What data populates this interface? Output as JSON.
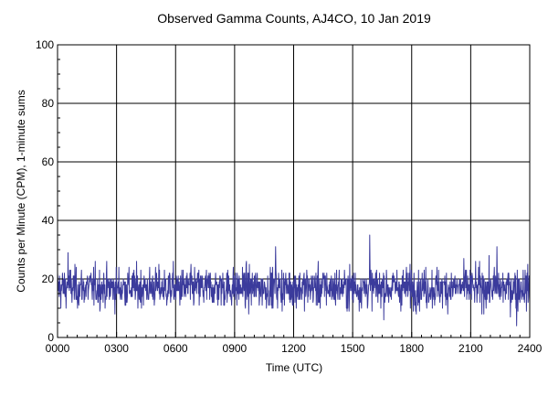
{
  "chart_data": {
    "type": "line",
    "title": "Observed Gamma Counts, AJ4CO, 10 Jan 2019",
    "xlabel": "Time (UTC)",
    "ylabel": "Counts per Minute (CPM), 1-minute sums",
    "x_ticks": [
      "0000",
      "0300",
      "0600",
      "0900",
      "1200",
      "1500",
      "1800",
      "2100",
      "2400"
    ],
    "y_ticks": [
      0,
      20,
      40,
      60,
      80,
      100
    ],
    "xlim": [
      0,
      1440
    ],
    "ylim": [
      0,
      100
    ],
    "x_unit": "minutes after 0000 UTC",
    "grid": true,
    "series_color": "#3b3b9c",
    "series": [
      {
        "description": "1-minute gamma count sums; values fluctuate roughly between 7 and 35 CPM around a mean near 17 CPM",
        "mean": 17,
        "spread": 4,
        "min": 3,
        "max": 35,
        "spikes": [
          {
            "x": 32,
            "y": 29
          },
          {
            "x": 665,
            "y": 31
          },
          {
            "x": 952,
            "y": 35
          },
          {
            "x": 1340,
            "y": 31
          },
          {
            "x": 1400,
            "y": 4
          }
        ]
      }
    ]
  }
}
